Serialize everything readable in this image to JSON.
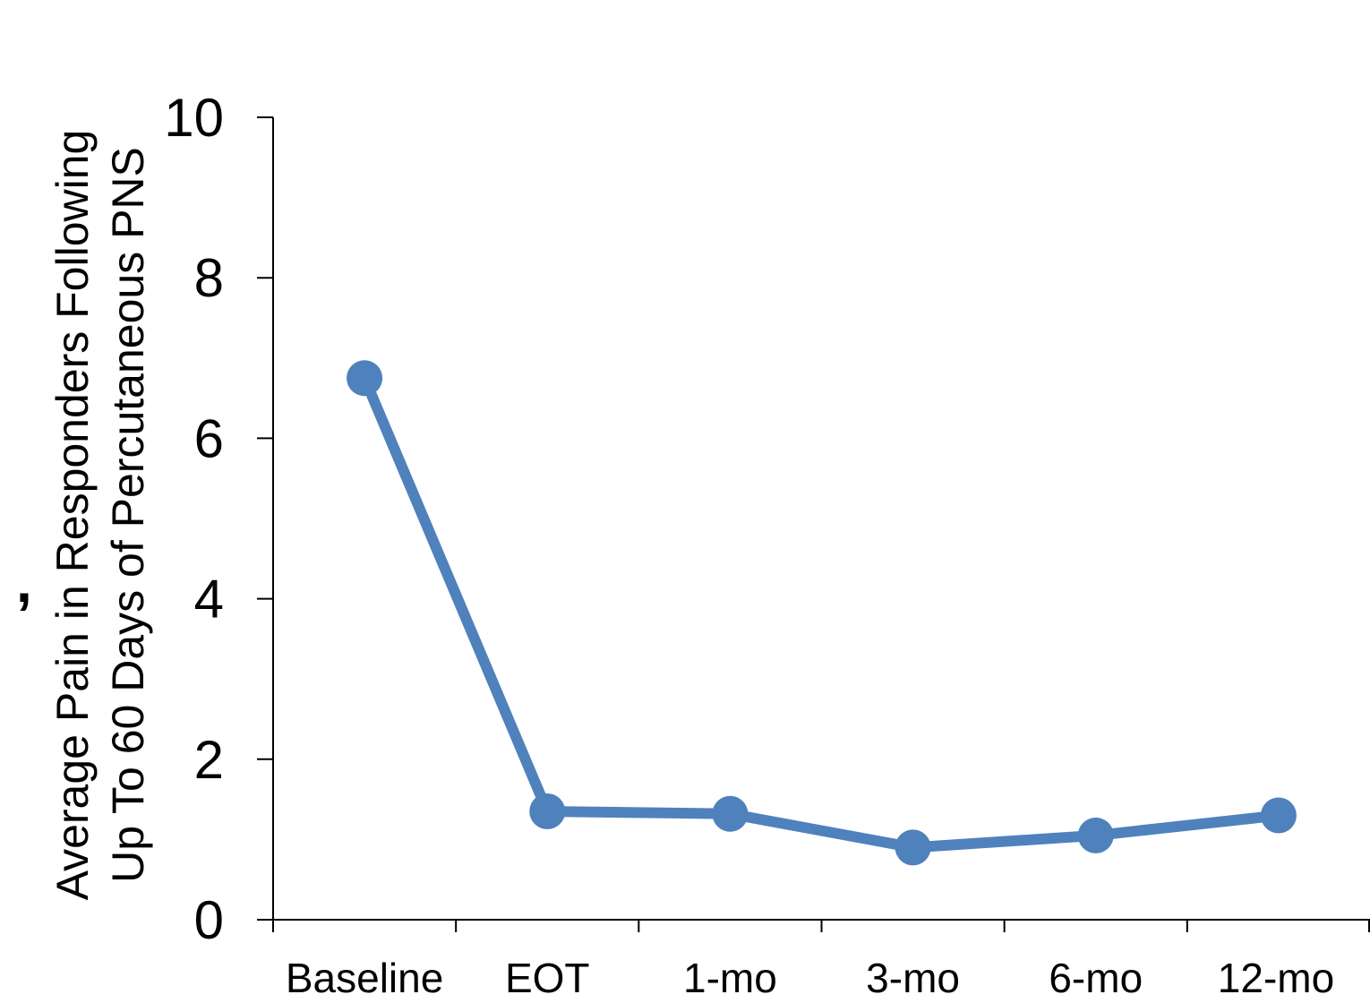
{
  "chart_data": {
    "type": "line",
    "categories": [
      "Baseline",
      "EOT",
      "1-mo",
      "3-mo",
      "6-mo",
      "12-mo"
    ],
    "series": [
      {
        "values": [
          6.75,
          1.35,
          1.32,
          0.9,
          1.05,
          1.3
        ]
      }
    ],
    "ylabel_lines": [
      "Average Pain in Responders Following",
      "Up To 60 Days of Percutaneous PNS"
    ],
    "ylim": [
      0,
      10
    ],
    "yticks": [
      0,
      2,
      4,
      6,
      8,
      10
    ],
    "grid": false,
    "legend": "none",
    "line_color": "#4f81bd",
    "axis_color": "#000000",
    "stray_mark": ","
  }
}
